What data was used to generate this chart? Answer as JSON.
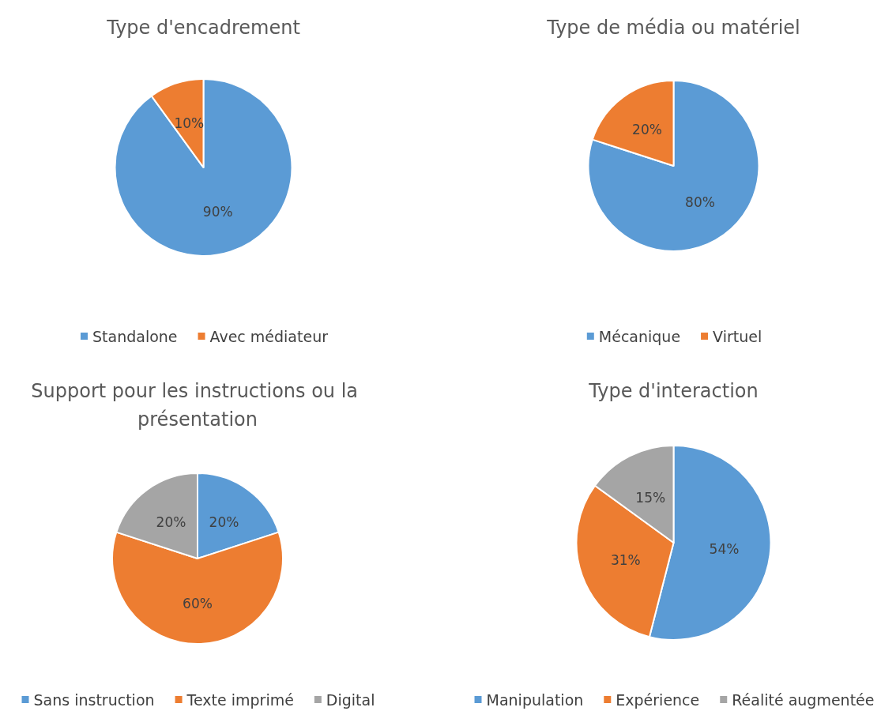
{
  "chart_data": [
    {
      "type": "pie",
      "title": "Type d'encadrement",
      "categories": [
        "Standalone",
        "Avec médiateur"
      ],
      "values": [
        90,
        10
      ],
      "colors": [
        "#5b9bd5",
        "#ed7d31"
      ],
      "value_labels": [
        "90%",
        "10%"
      ],
      "legend": "bottom"
    },
    {
      "type": "pie",
      "title": "Type de média ou matériel",
      "categories": [
        "Mécanique",
        "Virtuel"
      ],
      "values": [
        80,
        20
      ],
      "colors": [
        "#5b9bd5",
        "#ed7d31"
      ],
      "value_labels": [
        "80%",
        "20%"
      ],
      "legend": "bottom"
    },
    {
      "type": "pie",
      "title": "Support pour les instructions ou la présentation",
      "categories": [
        "Sans instruction",
        "Texte imprimé",
        "Digital"
      ],
      "values": [
        20,
        60,
        20
      ],
      "colors": [
        "#5b9bd5",
        "#ed7d31",
        "#a5a5a5"
      ],
      "value_labels": [
        "20%",
        "60%",
        "20%"
      ],
      "legend": "bottom"
    },
    {
      "type": "pie",
      "title": "Type d'interaction",
      "categories": [
        "Manipulation",
        "Expérience",
        "Réalité augmentée"
      ],
      "values": [
        54,
        31,
        15
      ],
      "colors": [
        "#5b9bd5",
        "#ed7d31",
        "#a5a5a5"
      ],
      "value_labels": [
        "54%",
        "31%",
        "15%"
      ],
      "legend": "bottom"
    }
  ]
}
